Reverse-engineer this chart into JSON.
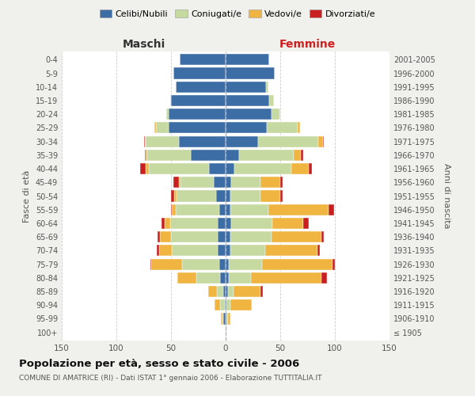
{
  "age_groups": [
    "100+",
    "95-99",
    "90-94",
    "85-89",
    "80-84",
    "75-79",
    "70-74",
    "65-69",
    "60-64",
    "55-59",
    "50-54",
    "45-49",
    "40-44",
    "35-39",
    "30-34",
    "25-29",
    "20-24",
    "15-19",
    "10-14",
    "5-9",
    "0-4"
  ],
  "birth_years": [
    "≤ 1905",
    "1906-1910",
    "1911-1915",
    "1916-1920",
    "1921-1925",
    "1926-1930",
    "1931-1935",
    "1936-1940",
    "1941-1945",
    "1946-1950",
    "1951-1955",
    "1956-1960",
    "1961-1965",
    "1966-1970",
    "1971-1975",
    "1976-1980",
    "1981-1985",
    "1986-1990",
    "1991-1995",
    "1996-2000",
    "2001-2005"
  ],
  "male": {
    "celibi": [
      0,
      2,
      1,
      2,
      5,
      6,
      7,
      7,
      7,
      6,
      9,
      11,
      15,
      32,
      43,
      52,
      52,
      50,
      46,
      48,
      42
    ],
    "coniugati": [
      0,
      1,
      4,
      6,
      22,
      34,
      42,
      43,
      44,
      40,
      36,
      30,
      55,
      40,
      30,
      12,
      2,
      1,
      0,
      0,
      0
    ],
    "vedovi": [
      0,
      1,
      5,
      8,
      17,
      28,
      12,
      10,
      5,
      3,
      2,
      2,
      3,
      1,
      1,
      1,
      0,
      0,
      0,
      0,
      0
    ],
    "divorziati": [
      0,
      0,
      0,
      0,
      0,
      1,
      2,
      2,
      3,
      1,
      3,
      5,
      5,
      1,
      1,
      0,
      0,
      0,
      0,
      0,
      0
    ]
  },
  "female": {
    "nubili": [
      0,
      1,
      1,
      2,
      3,
      3,
      4,
      4,
      5,
      4,
      4,
      5,
      8,
      12,
      30,
      38,
      42,
      40,
      37,
      45,
      40
    ],
    "coniugate": [
      0,
      1,
      3,
      5,
      20,
      30,
      32,
      38,
      38,
      35,
      28,
      27,
      52,
      50,
      55,
      28,
      7,
      4,
      2,
      0,
      0
    ],
    "vedove": [
      1,
      2,
      20,
      25,
      65,
      65,
      48,
      46,
      28,
      55,
      18,
      18,
      16,
      7,
      4,
      2,
      1,
      0,
      0,
      0,
      0
    ],
    "divorziate": [
      0,
      0,
      0,
      2,
      5,
      2,
      2,
      2,
      5,
      5,
      2,
      2,
      3,
      2,
      1,
      0,
      0,
      0,
      0,
      0,
      0
    ]
  },
  "colors": {
    "celibi": "#3c6ea5",
    "coniugati": "#c5d9a0",
    "vedovi": "#f0b440",
    "divorziati": "#c82020"
  },
  "xlim": 150,
  "title": "Popolazione per età, sesso e stato civile - 2006",
  "subtitle": "COMUNE DI AMATRICE (RI) - Dati ISTAT 1° gennaio 2006 - Elaborazione TUTTITALIA.IT",
  "ylabel_left": "Fasce di età",
  "ylabel_right": "Anni di nascita",
  "header_left": "Maschi",
  "header_right": "Femmine",
  "legend_labels": [
    "Celibi/Nubili",
    "Coniugati/e",
    "Vedovi/e",
    "Divorziati/e"
  ],
  "bg_color": "#f0f0ec",
  "plot_bg_color": "#ffffff"
}
